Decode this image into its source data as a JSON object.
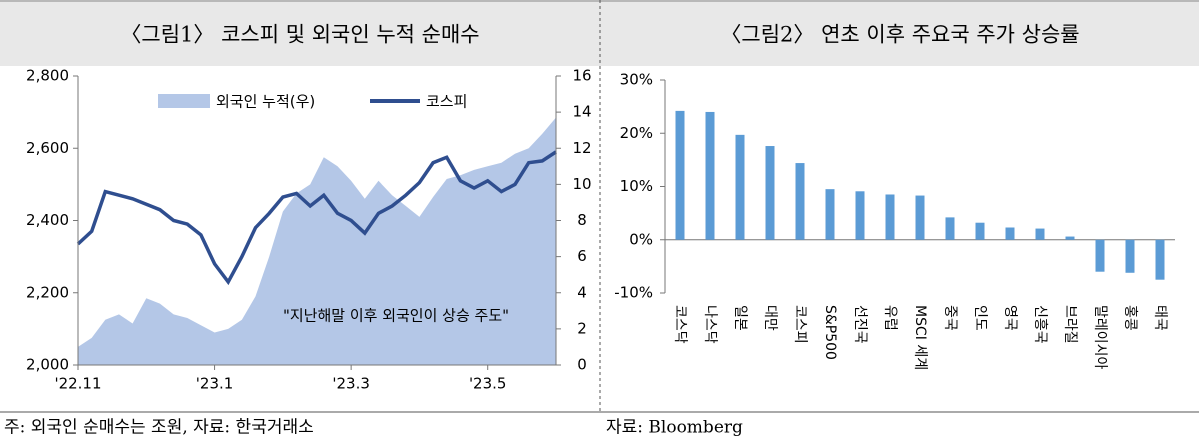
{
  "chart_data": [
    {
      "type": "line",
      "title": "〈그림1〉 코스피 및 외국인 누적 순매수",
      "x": [
        0,
        0.2,
        0.4,
        0.6,
        0.8,
        1.0,
        1.2,
        1.4,
        1.6,
        1.8,
        2.0,
        2.2,
        2.4,
        2.6,
        2.8,
        3.0,
        3.2,
        3.4,
        3.6,
        3.8,
        4.0,
        4.2,
        4.4,
        4.6,
        4.8,
        5.0,
        5.2,
        5.4,
        5.6,
        5.8,
        6.0,
        6.2,
        6.4,
        6.6,
        6.8,
        7.0
      ],
      "xlim": [
        0,
        7
      ],
      "xticks": [
        {
          "value": 0,
          "label": "'22.11"
        },
        {
          "value": 2,
          "label": "'23.1"
        },
        {
          "value": 4,
          "label": "'23.3"
        },
        {
          "value": 6,
          "label": "'23.5"
        }
      ],
      "ylim": [
        2000,
        2800
      ],
      "yticks": [
        {
          "value": 2000,
          "label": "2,000"
        },
        {
          "value": 2200,
          "label": "2,200"
        },
        {
          "value": 2400,
          "label": "2,400"
        },
        {
          "value": 2600,
          "label": "2,600"
        },
        {
          "value": 2800,
          "label": "2,800"
        }
      ],
      "y2lim": [
        0,
        16
      ],
      "y2ticks": [
        0,
        2,
        4,
        6,
        8,
        10,
        12,
        14,
        16
      ],
      "series": [
        {
          "name": "외국인 누적(우)",
          "type": "area",
          "axis": "y2",
          "color": "#b4c7e7",
          "values": [
            1.0,
            1.5,
            2.5,
            2.8,
            2.3,
            3.7,
            3.4,
            2.8,
            2.6,
            2.2,
            1.8,
            2.0,
            2.5,
            3.8,
            6.0,
            8.5,
            9.5,
            10.0,
            11.5,
            11.0,
            10.2,
            9.2,
            10.2,
            9.4,
            8.8,
            8.2,
            9.3,
            10.3,
            10.5,
            10.8,
            11.0,
            11.2,
            11.7,
            12.0,
            12.8,
            13.7
          ]
        },
        {
          "name": "코스피",
          "type": "line",
          "axis": "y",
          "color": "#2f4e8f",
          "values": [
            2335,
            2370,
            2480,
            2470,
            2460,
            2445,
            2430,
            2400,
            2390,
            2360,
            2280,
            2230,
            2300,
            2380,
            2420,
            2465,
            2475,
            2440,
            2470,
            2420,
            2400,
            2365,
            2420,
            2440,
            2470,
            2505,
            2560,
            2575,
            2510,
            2490,
            2510,
            2480,
            2500,
            2560,
            2565,
            2590
          ]
        }
      ],
      "annotation": "\"지난해말 이후 외국인이 상승 주도\"",
      "note": "주: 외국인 순매수는 조원, 자료: 한국거래소"
    },
    {
      "type": "bar",
      "title": "〈그림2〉 연초 이후 주요국 주가 상승률",
      "categories": [
        "코스닥",
        "나스닥",
        "일본",
        "대만",
        "코스피",
        "S&P500",
        "선진국",
        "유럽",
        "MSCI 세계",
        "중국",
        "인도",
        "영국",
        "신흥국",
        "브라질",
        "말레이시아",
        "홍콩",
        "태국"
      ],
      "values": [
        24.2,
        24.0,
        19.7,
        17.6,
        14.4,
        9.5,
        9.1,
        8.5,
        8.3,
        4.2,
        3.2,
        2.3,
        2.1,
        0.6,
        -6.0,
        -6.2,
        -7.5
      ],
      "color": "#5b9bd5",
      "ylim": [
        -10,
        30
      ],
      "yticks": [
        {
          "value": -10,
          "label": "-10%"
        },
        {
          "value": 0,
          "label": "0%"
        },
        {
          "value": 10,
          "label": "10%"
        },
        {
          "value": 20,
          "label": "20%"
        },
        {
          "value": 30,
          "label": "30%"
        }
      ],
      "note": "자료: Bloomberg"
    }
  ]
}
